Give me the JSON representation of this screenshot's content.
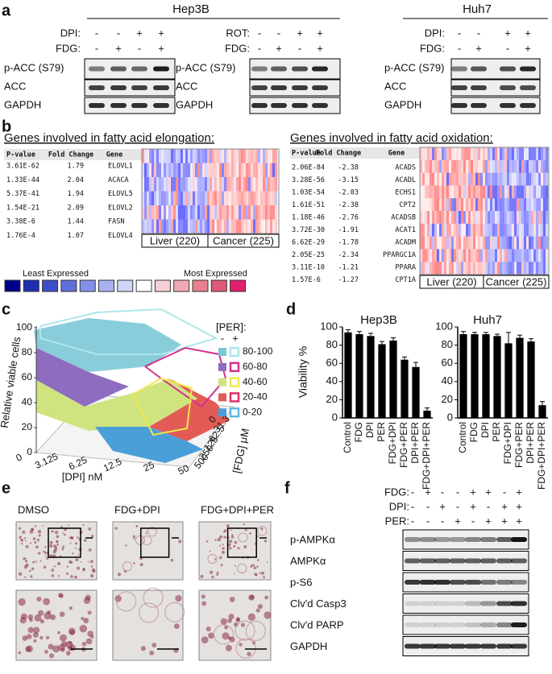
{
  "panel_labels": [
    "a",
    "b",
    "c",
    "d",
    "e",
    "f"
  ],
  "panel_a": {
    "cell_lines": [
      "Hep3B",
      "Huh7"
    ],
    "groups": [
      {
        "treatments": [
          {
            "label": "DPI:",
            "signs": [
              "-",
              "-",
              "+",
              "+"
            ]
          },
          {
            "label": "FDG:",
            "signs": [
              "-",
              "+",
              "-",
              "+"
            ]
          }
        ],
        "blots": [
          "p-ACC (S79)",
          "ACC",
          "GAPDH"
        ]
      },
      {
        "treatments": [
          {
            "label": "ROT:",
            "signs": [
              "-",
              "-",
              "+",
              "+"
            ]
          },
          {
            "label": "FDG:",
            "signs": [
              "-",
              "+",
              "-",
              "+"
            ]
          }
        ],
        "blots": [
          "p-ACC (S79)",
          "ACC",
          "GAPDH"
        ]
      },
      {
        "treatments": [
          {
            "label": "DPI:",
            "signs": [
              "-",
              "-",
              "+",
              "+"
            ]
          },
          {
            "label": "FDG:",
            "signs": [
              "-",
              "+",
              "-",
              "+"
            ]
          }
        ],
        "blots": [
          "p-ACC (S79)",
          "ACC",
          "GAPDH"
        ]
      }
    ]
  },
  "panel_b": {
    "elongation": {
      "title": "Genes involved in fatty acid elongation:",
      "columns": [
        "P-value",
        "Fold Change",
        "Gene"
      ],
      "rows": [
        [
          "3.61E-62",
          "1.79",
          "ELOVL1"
        ],
        [
          "1.33E-44",
          "2.04",
          "ACACA"
        ],
        [
          "5.37E-41",
          "1.94",
          "ELOVL5"
        ],
        [
          "1.54E-21",
          "2.09",
          "ELOVL2"
        ],
        [
          "3.38E-6",
          "1.44",
          "FASN"
        ],
        [
          "1.76E-4",
          "1.07",
          "ELOVL4"
        ]
      ],
      "groups": [
        "Liver (220)",
        "Cancer (225)"
      ]
    },
    "oxidation": {
      "title": "Genes involved in fatty acid oxidation:",
      "columns": [
        "P-value",
        "Fold Change",
        "Gene"
      ],
      "rows": [
        [
          "2.06E-84",
          "-2.38",
          "ACADS"
        ],
        [
          "3.28E-56",
          "-3.15",
          "ACADL"
        ],
        [
          "1.03E-54",
          "-2.03",
          "ECHS1"
        ],
        [
          "1.61E-51",
          "-2.38",
          "CPT2"
        ],
        [
          "1.18E-46",
          "-2.76",
          "ACADSB"
        ],
        [
          "3.72E-30",
          "-1.91",
          "ACAT1"
        ],
        [
          "6.62E-29",
          "-1.78",
          "ACADM"
        ],
        [
          "2.05E-25",
          "-2.34",
          "PPARGC1A"
        ],
        [
          "3.11E-10",
          "-1.21",
          "PPARA"
        ],
        [
          "1.57E-6",
          "-1.27",
          "CPT1A"
        ]
      ],
      "groups": [
        "Liver (220)",
        "Cancer (225)"
      ]
    },
    "legend": {
      "low": "Least Expressed",
      "high": "Most Expressed"
    }
  },
  "panel_c": {
    "z_label": "Relative viable cells",
    "zticks": [
      0,
      20,
      40,
      60,
      80,
      100
    ],
    "x_label": "[DPI] nM",
    "xticks": [
      0,
      3.125,
      6.25,
      12.5,
      25,
      50
    ],
    "y_label": "[FDG] μM",
    "yticks": [
      0,
      31.3,
      62.5,
      125,
      250,
      500
    ],
    "legend": {
      "title": "[PER]:",
      "columns": [
        "-",
        "+"
      ],
      "ranges": [
        "80-100",
        "60-80",
        "40-60",
        "20-40",
        "0-20"
      ]
    }
  },
  "panel_d": {
    "ylabel": "Viability %",
    "ylim": [
      0,
      100
    ],
    "yticks": [
      0,
      20,
      40,
      60,
      80,
      100
    ],
    "categories": [
      "Control",
      "FDG",
      "DPI",
      "PER",
      "FDG+DPI",
      "FDG+PER",
      "DPI+PER",
      "FDG+DPI+PER"
    ],
    "color": "#000000",
    "charts": [
      {
        "title": "Hep3B",
        "values": [
          94,
          92,
          90,
          81,
          85,
          64,
          56,
          8
        ],
        "errors": [
          3,
          3,
          3,
          3,
          3,
          3,
          5,
          3
        ]
      },
      {
        "title": "Huh7",
        "values": [
          92,
          92,
          92,
          90,
          82,
          88,
          84,
          14
        ],
        "errors": [
          3,
          2,
          2,
          2,
          12,
          3,
          3,
          4
        ]
      }
    ]
  },
  "panel_e": {
    "labels": [
      "DMSO",
      "FDG+DPI",
      "FDG+DPI+PER"
    ]
  },
  "panel_f": {
    "treatments": [
      {
        "label": "FDG:",
        "signs": [
          "-",
          "+",
          "-",
          "-",
          "+",
          "+",
          "-",
          "+"
        ]
      },
      {
        "label": "DPI:",
        "signs": [
          "-",
          "-",
          "+",
          "-",
          "+",
          "-",
          "+",
          "+"
        ]
      },
      {
        "label": "PER:",
        "signs": [
          "-",
          "-",
          "-",
          "+",
          "-",
          "+",
          "+",
          "+"
        ]
      }
    ],
    "blots": [
      "p-AMPKα",
      "AMPKα",
      "p-S6",
      "Clv'd Casp3",
      "Clv'd PARP",
      "GAPDH"
    ]
  }
}
